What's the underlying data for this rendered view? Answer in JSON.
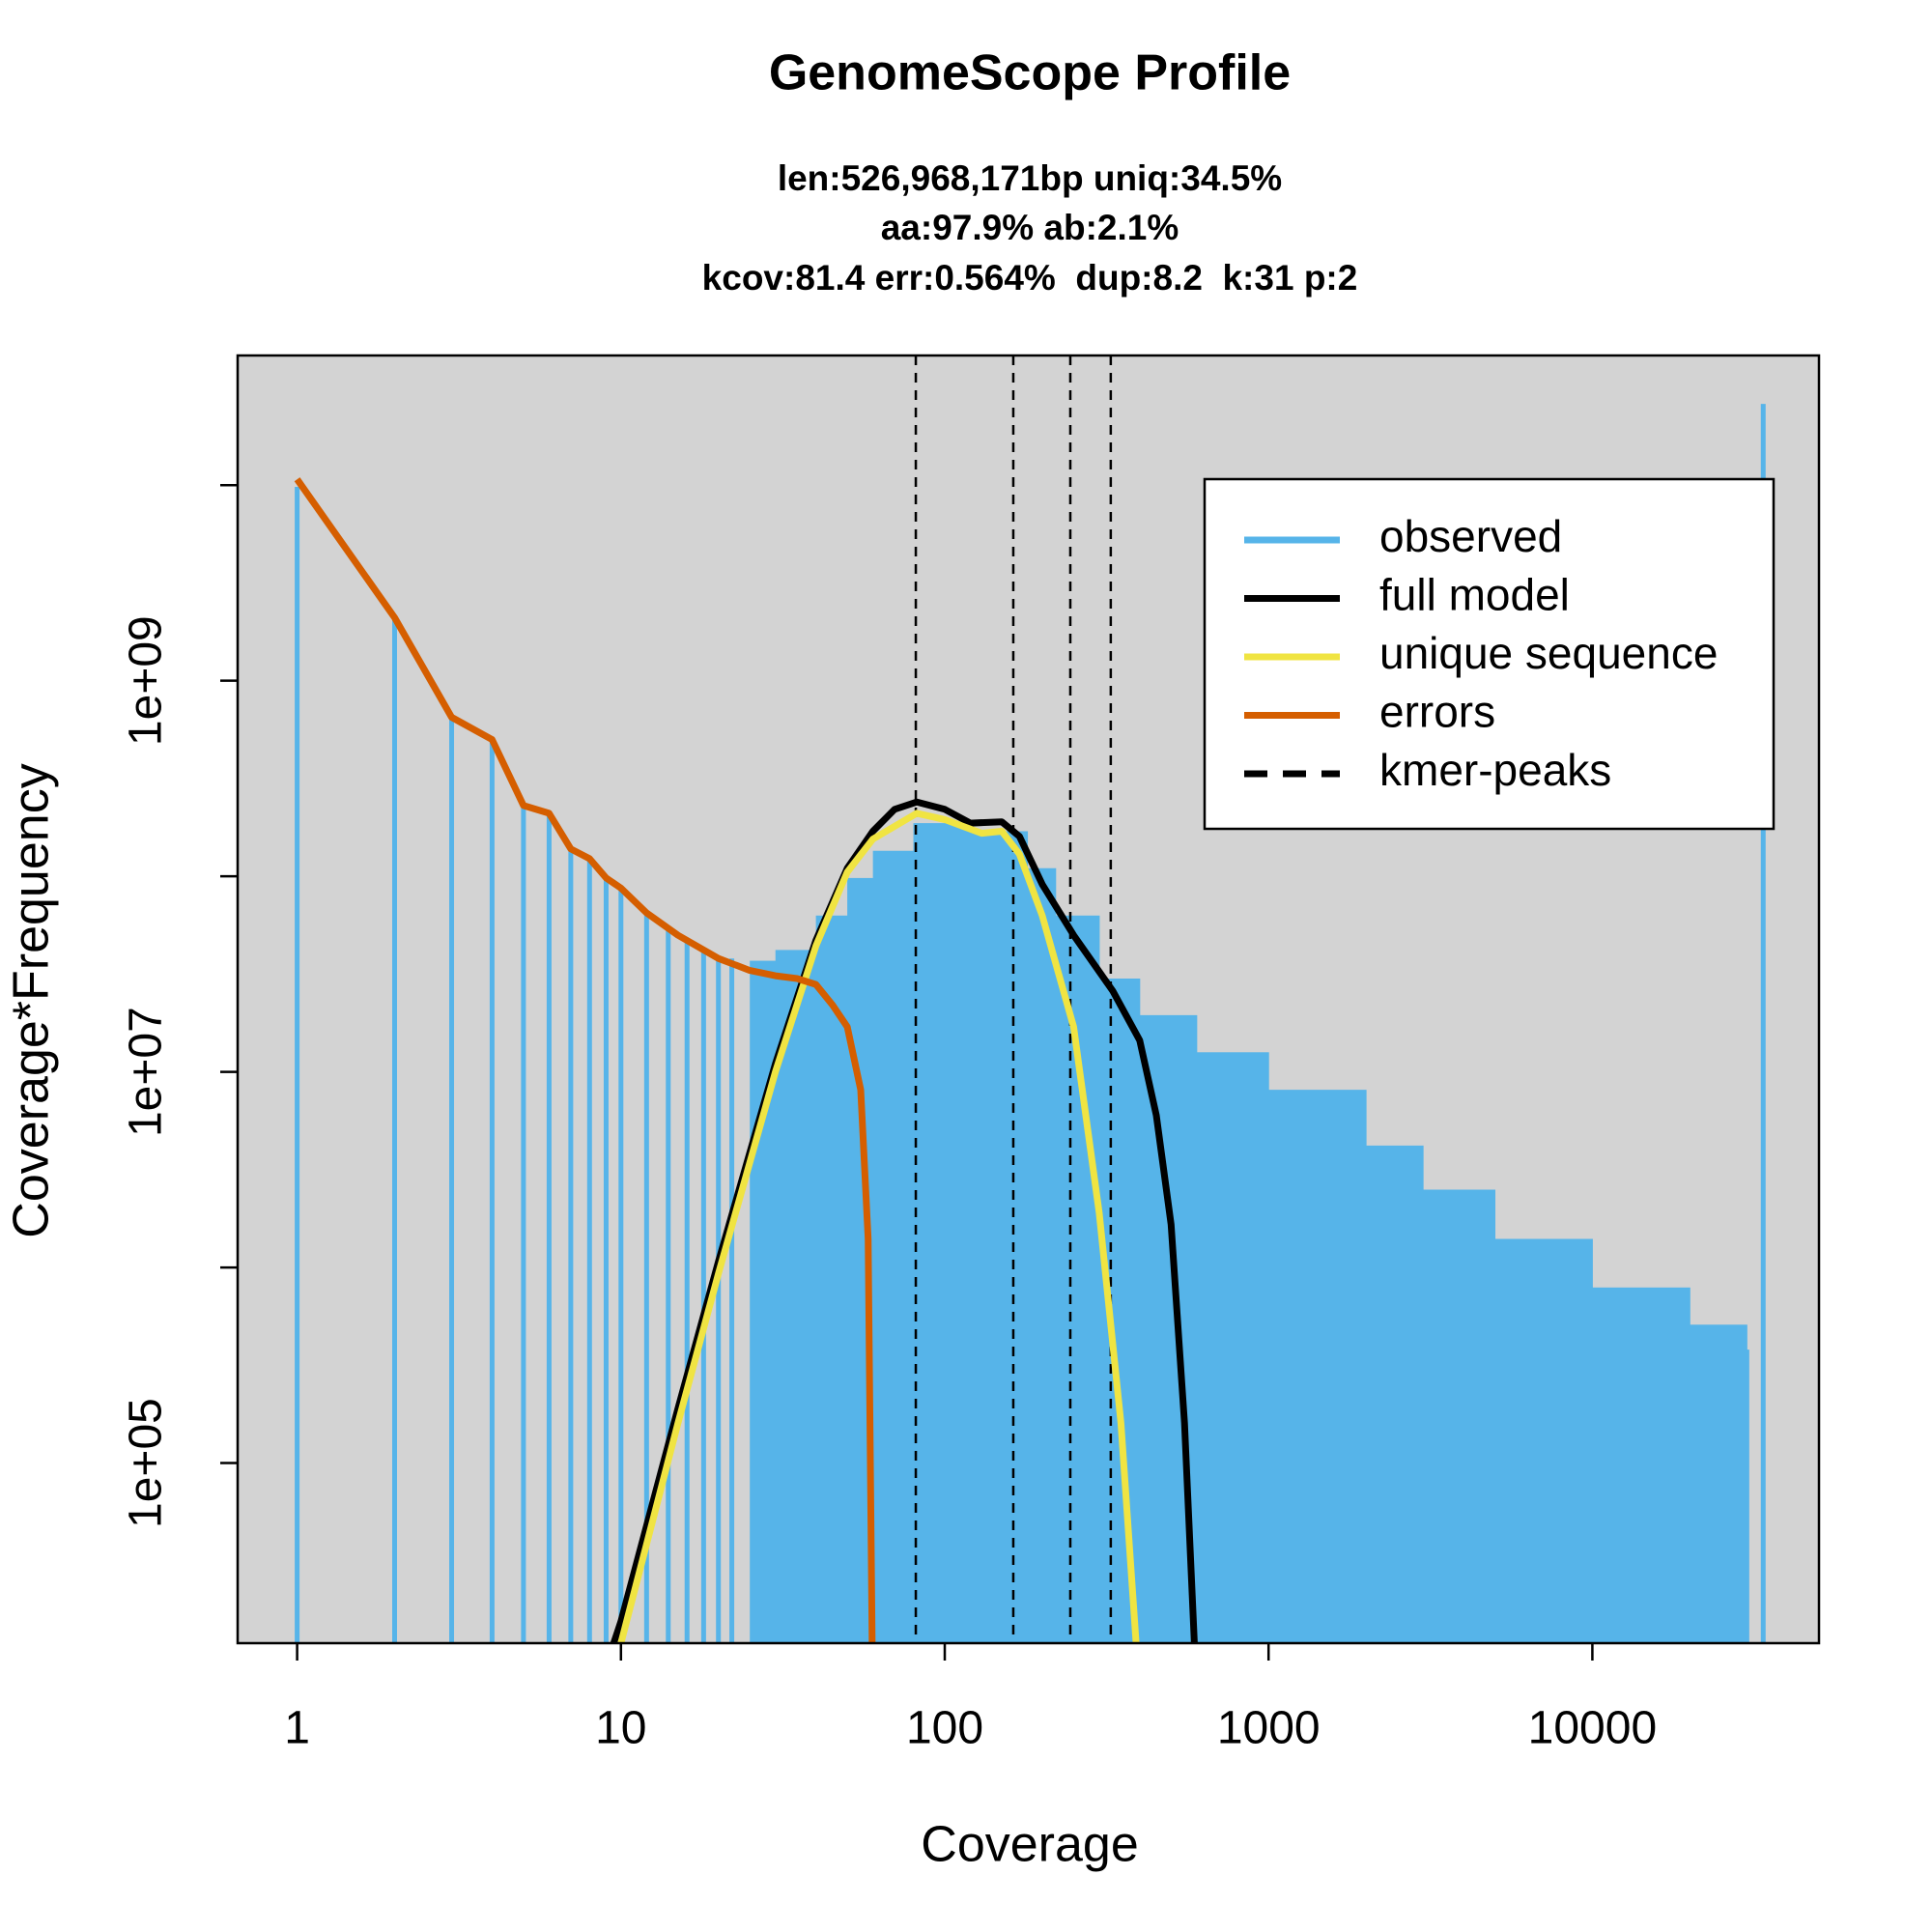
{
  "chart_data": {
    "type": "line",
    "title": "GenomeScope Profile",
    "subtitle": [
      "len:526,968,171bp uniq:34.5%",
      "aa:97.9% ab:2.1%",
      "kcov:81.4 err:0.564%  dup:8.2  k:31 p:2"
    ],
    "x_label": "Coverage",
    "y_label": "Coverage*Frequency",
    "xscale": "log",
    "yscale": "log",
    "xlim": [
      0.655,
      50100
    ],
    "ylim": [
      12000,
      46000000000
    ],
    "xticks": [
      1,
      10,
      100,
      1000,
      10000
    ],
    "yticks": [
      {
        "value": 100000,
        "label": "1e+05"
      },
      {
        "value": 1000000,
        "label": null
      },
      {
        "value": 10000000,
        "label": "1e+07"
      },
      {
        "value": 100000000,
        "label": null
      },
      {
        "value": 1000000000,
        "label": "1e+09"
      },
      {
        "value": 10000000000,
        "label": null
      }
    ],
    "background": "#d3d3d3",
    "legend": "topright",
    "series": [
      {
        "name": "observed",
        "color": "#56B4E9",
        "style": "spikes",
        "x": [
          1,
          2,
          3,
          4,
          5,
          6,
          7,
          8,
          9,
          10,
          12,
          14,
          16,
          18,
          20,
          22,
          25,
          30,
          40,
          50,
          60,
          80,
          100,
          120,
          150,
          180,
          220,
          300,
          400,
          600,
          1000,
          2000,
          3000,
          5000,
          10000,
          20000,
          30000,
          33700
        ],
        "values": [
          9800000000,
          2100000000,
          650000000,
          500000000,
          230000000,
          210000000,
          138000000,
          123000000,
          98000000,
          87000000,
          65000000,
          53000000,
          46000000,
          42000000,
          39000000,
          38000000,
          37000000,
          42000000,
          63000000,
          98000000,
          135000000,
          187000000,
          187000000,
          170000000,
          170000000,
          110000000,
          63000000,
          30000000,
          19500000,
          12600000,
          8100000,
          4200000,
          2500000,
          1400000,
          790000,
          510000,
          380000,
          26000000000
        ]
      },
      {
        "name": "full model",
        "color": "#000000",
        "style": "line",
        "x": [
          9.5,
          10,
          15,
          20,
          30,
          40,
          50,
          60,
          70,
          82,
          100,
          120,
          150,
          170,
          200,
          250,
          330,
          400,
          450,
          500,
          550,
          590
        ],
        "values": [
          12000,
          15500,
          190000,
          1070000,
          11000000,
          47000000,
          110000000,
          170000000,
          220000000,
          240000000,
          220000000,
          187000000,
          190000000,
          160000000,
          91000000,
          50000000,
          26000000,
          14500000,
          6000000,
          1660000,
          160000,
          12000
        ]
      },
      {
        "name": "unique sequence",
        "color": "#F0E442",
        "style": "line",
        "x": [
          10,
          15,
          20,
          30,
          40,
          50,
          60,
          82,
          100,
          130,
          150,
          170,
          200,
          250,
          300,
          350,
          390
        ],
        "values": [
          12000,
          160000,
          930000,
          10000000,
          44000000,
          105000000,
          155000000,
          210000000,
          195000000,
          166000000,
          170000000,
          130000000,
          63000000,
          17000000,
          1900000,
          160000,
          12000
        ]
      },
      {
        "name": "errors",
        "color": "#D55E00",
        "style": "line",
        "x": [
          1,
          2,
          3,
          4,
          5,
          6,
          7,
          8,
          9,
          10,
          12,
          15,
          20,
          25,
          30,
          35,
          40,
          45,
          50,
          55,
          58,
          60
        ],
        "values": [
          10700000000,
          2100000000,
          650000000,
          500000000,
          230000000,
          210000000,
          138000000,
          123000000,
          98000000,
          87000000,
          65000000,
          50000000,
          38000000,
          33000000,
          31000000,
          30000000,
          28000000,
          22000000,
          17000000,
          8100000,
          1400000,
          5000
        ]
      },
      {
        "name": "kmer-peaks",
        "color": "#000000",
        "style": "vlines",
        "x": [
          81.4,
          162.8,
          244.2,
          325.6
        ]
      }
    ]
  }
}
